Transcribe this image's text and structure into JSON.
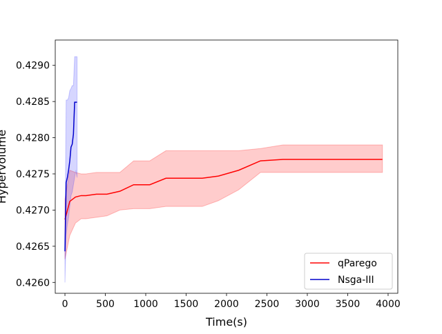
{
  "chart_data": {
    "type": "line",
    "title": "",
    "xlabel": "Time(s)",
    "ylabel": "Hypervolume",
    "xlim": [
      -120,
      4120
    ],
    "ylim": [
      0.42585,
      0.42935
    ],
    "x_ticks": [
      0,
      500,
      1000,
      1500,
      2000,
      2500,
      3000,
      3500,
      4000
    ],
    "x_tick_labels": [
      "0",
      "500",
      "1000",
      "1500",
      "2000",
      "2500",
      "3000",
      "3500",
      "4000"
    ],
    "y_ticks": [
      0.426,
      0.4265,
      0.427,
      0.4275,
      0.428,
      0.4285,
      0.429
    ],
    "y_tick_labels": [
      "0.4260",
      "0.4265",
      "0.4270",
      "0.4275",
      "0.4280",
      "0.4285",
      "0.4290"
    ],
    "grid": false,
    "legend_position": "lower right",
    "series": [
      {
        "name": "qParego",
        "color": "#ff0000",
        "band_color": "#ff0000",
        "x": [
          0,
          60,
          130,
          200,
          260,
          390,
          520,
          680,
          850,
          1050,
          1250,
          1450,
          1700,
          1900,
          2150,
          2420,
          2700,
          3200,
          3930
        ],
        "y": [
          0.42687,
          0.42712,
          0.42718,
          0.4272,
          0.4272,
          0.42722,
          0.42722,
          0.42726,
          0.42735,
          0.42735,
          0.42744,
          0.42744,
          0.42744,
          0.42747,
          0.42755,
          0.42768,
          0.4277,
          0.4277,
          0.4277
        ],
        "y_lower": [
          0.42632,
          0.42665,
          0.42682,
          0.42688,
          0.42688,
          0.4269,
          0.42692,
          0.427,
          0.42702,
          0.42702,
          0.42705,
          0.42705,
          0.42705,
          0.42713,
          0.42728,
          0.42752,
          0.42752,
          0.42752,
          0.42752
        ],
        "y_upper": [
          0.42715,
          0.42755,
          0.42752,
          0.4275,
          0.4275,
          0.42752,
          0.42752,
          0.42752,
          0.42768,
          0.42768,
          0.42782,
          0.42782,
          0.42782,
          0.42782,
          0.42782,
          0.42785,
          0.4279,
          0.4279,
          0.4279
        ]
      },
      {
        "name": "Nsga-III",
        "color": "#0000cc",
        "band_color": "#3333ff",
        "x": [
          0,
          15,
          30,
          45,
          60,
          75,
          90,
          105,
          120,
          135,
          150
        ],
        "y": [
          0.42643,
          0.42738,
          0.42745,
          0.42755,
          0.42768,
          0.42787,
          0.42791,
          0.42805,
          0.42849,
          0.42849,
          0.42849
        ],
        "y_lower": [
          0.426,
          0.42665,
          0.4268,
          0.4269,
          0.42705,
          0.4272,
          0.42725,
          0.42735,
          0.42745,
          0.42755,
          0.42745
        ],
        "y_upper": [
          0.42655,
          0.42852,
          0.42852,
          0.42855,
          0.42865,
          0.42868,
          0.42872,
          0.42872,
          0.42912,
          0.42912,
          0.42912
        ]
      }
    ]
  }
}
